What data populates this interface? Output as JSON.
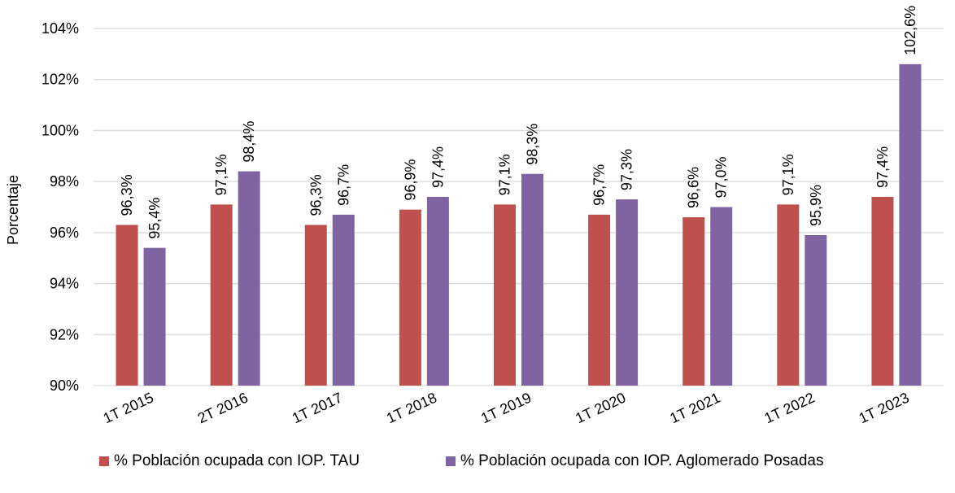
{
  "chart_data": {
    "type": "bar",
    "ylabel": "Porcentaje",
    "ylim": [
      90,
      104
    ],
    "yticks": [
      90,
      92,
      94,
      96,
      98,
      100,
      102,
      104
    ],
    "ytick_labels": [
      "90%",
      "92%",
      "94%",
      "96%",
      "98%",
      "100%",
      "102%",
      "104%"
    ],
    "grid": true,
    "legend_position": "bottom",
    "categories": [
      "1T 2015",
      "2T 2016",
      "1T 2017",
      "1T 2018",
      "1T 2019",
      "1T 2020",
      "1T 2021",
      "1T 2022",
      "1T 2023"
    ],
    "series": [
      {
        "name": "% Población ocupada con IOP. TAU",
        "color": "#c0504d",
        "values": [
          96.3,
          97.1,
          96.3,
          96.9,
          97.1,
          96.7,
          96.6,
          97.1,
          97.4
        ],
        "labels": [
          "96,3%",
          "97,1%",
          "96,3%",
          "96,9%",
          "97,1%",
          "96,7%",
          "96,6%",
          "97,1%",
          "97,4%"
        ]
      },
      {
        "name": "% Población ocupada con IOP. Aglomerado Posadas",
        "color": "#8064a2",
        "values": [
          95.4,
          98.4,
          96.7,
          97.4,
          98.3,
          97.3,
          97.0,
          95.9,
          102.6
        ],
        "labels": [
          "95,4%",
          "98,4%",
          "96,7%",
          "97,4%",
          "98,3%",
          "97,3%",
          "97,0%",
          "95,9%",
          "102,6%"
        ]
      }
    ]
  }
}
